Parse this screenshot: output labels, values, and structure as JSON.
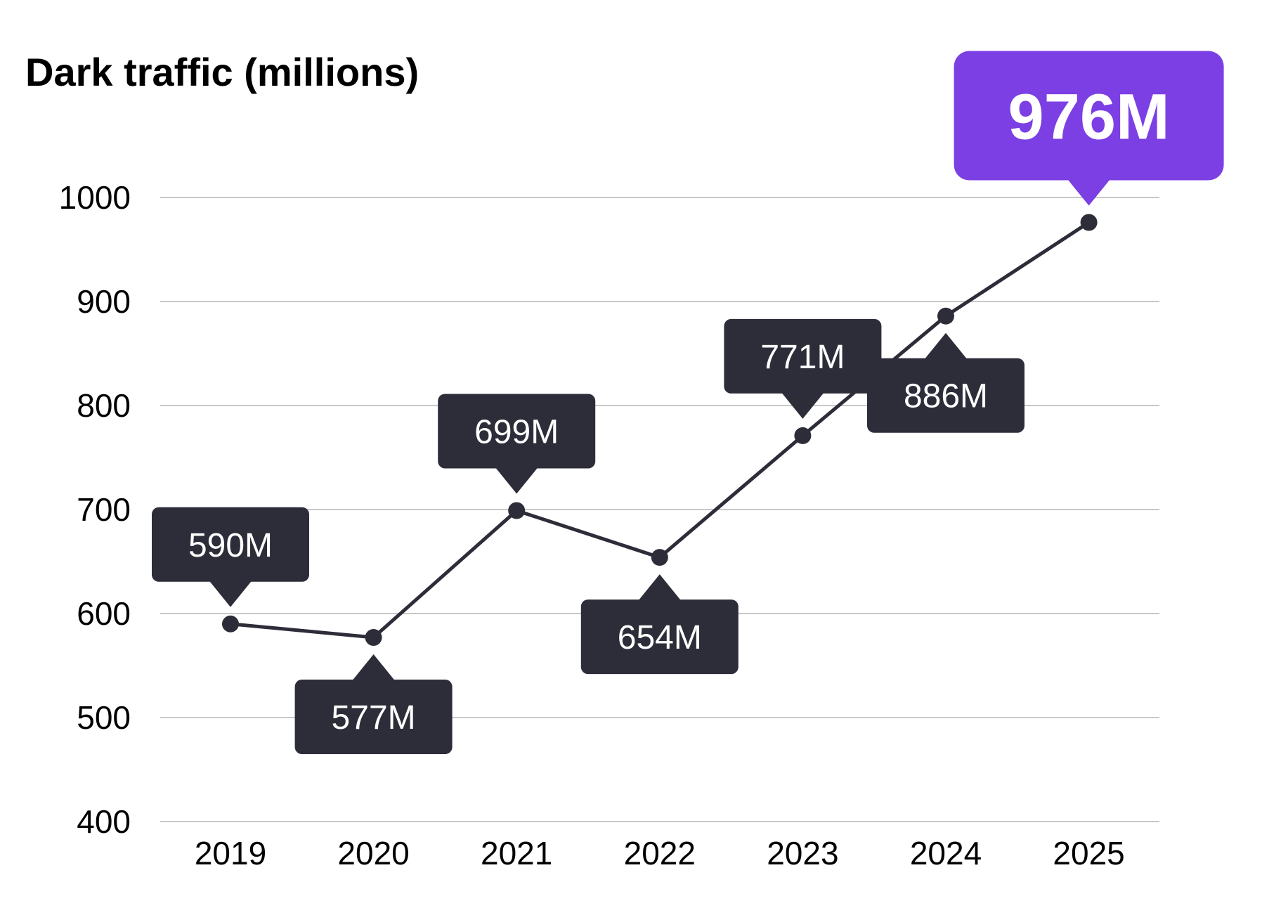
{
  "chart_data": {
    "type": "line",
    "title": "Dark traffic (millions)",
    "xlabel": "",
    "ylabel": "",
    "categories": [
      "2019",
      "2020",
      "2021",
      "2022",
      "2023",
      "2024",
      "2025"
    ],
    "series": [
      {
        "values": [
          590,
          577,
          699,
          654,
          771,
          886,
          976
        ]
      }
    ],
    "data_labels": [
      "590M",
      "577M",
      "699M",
      "654M",
      "771M",
      "886M",
      "976M"
    ],
    "label_placement": [
      "above",
      "below",
      "above",
      "below",
      "above",
      "below",
      "above"
    ],
    "highlighted_index": 6,
    "ylim": [
      400,
      1000
    ],
    "yticks": [
      "400",
      "500",
      "600",
      "700",
      "800",
      "900",
      "1000"
    ],
    "grid": true,
    "legend": "none",
    "colors": {
      "line": "#2d2d3a",
      "callout": "#2d2d3a",
      "highlight": "#7b3fe4",
      "grid": "#c8c8c8",
      "text": "#000000"
    }
  }
}
